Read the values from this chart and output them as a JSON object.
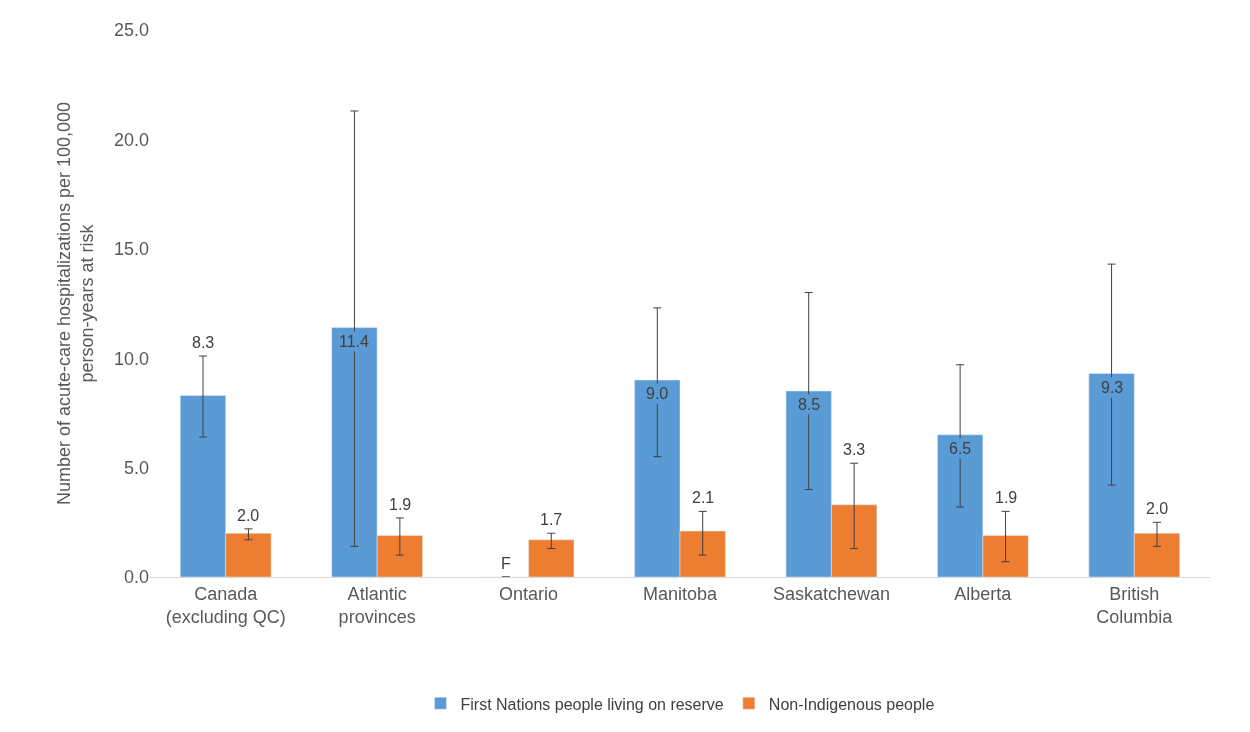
{
  "chart_data": {
    "type": "bar",
    "ylabel": "Number of acute-care hospitalizations per 100,000\nperson-years at risk",
    "categories": [
      "Canada\n(excluding QC)",
      "Atlantic\nprovinces",
      "Ontario",
      "Manitoba",
      "Saskatchewan",
      "Alberta",
      "British\nColumbia"
    ],
    "series": [
      {
        "name": "First Nations people living on reserve",
        "color": "#5b9bd5",
        "values": [
          8.3,
          11.4,
          null,
          9.0,
          8.5,
          6.5,
          9.3
        ],
        "value_labels": [
          "8.3",
          "11.4",
          "F",
          "9.0",
          "8.5",
          "6.5",
          "9.3"
        ],
        "errors": [
          [
            6.4,
            10.1
          ],
          [
            1.4,
            21.3
          ],
          null,
          [
            5.5,
            12.3
          ],
          [
            4.0,
            13.0
          ],
          [
            3.2,
            9.7
          ],
          [
            4.2,
            14.3
          ]
        ]
      },
      {
        "name": "Non-Indigenous people",
        "color": "#ed7d31",
        "values": [
          2.0,
          1.9,
          1.7,
          2.1,
          3.3,
          1.9,
          2.0
        ],
        "value_labels": [
          "2.0",
          "1.9",
          "1.7",
          "2.1",
          "3.3",
          "1.9",
          "2.0"
        ],
        "errors": [
          [
            1.7,
            2.2
          ],
          [
            1.0,
            2.7
          ],
          [
            1.3,
            2.0
          ],
          [
            1.0,
            3.0
          ],
          [
            1.3,
            5.2
          ],
          [
            0.7,
            3.0
          ],
          [
            1.4,
            2.5
          ]
        ]
      }
    ],
    "ylim": [
      0,
      25
    ],
    "yticks": [
      {
        "value": 0,
        "label": "0.0"
      },
      {
        "value": 5,
        "label": "5.0"
      },
      {
        "value": 10,
        "label": "10.0"
      },
      {
        "value": 15,
        "label": "15.0"
      },
      {
        "value": 20,
        "label": "20.0"
      },
      {
        "value": 25,
        "label": "25.0"
      }
    ],
    "legend": "bottom"
  }
}
